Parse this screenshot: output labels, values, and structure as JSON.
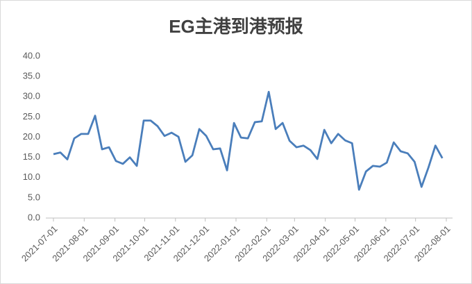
{
  "chart_data": {
    "type": "line",
    "title": "EG主港到港预报",
    "x": [
      0,
      7,
      14,
      21,
      28,
      35,
      42,
      49,
      56,
      63,
      70,
      77,
      84,
      91,
      98,
      105,
      112,
      119,
      126,
      133,
      140,
      147,
      154,
      161,
      168,
      175,
      182,
      189,
      196,
      203,
      210,
      217,
      224,
      231,
      238,
      245,
      252,
      259,
      266,
      273,
      280,
      287,
      294,
      301,
      308,
      315,
      322,
      329,
      336,
      343,
      350,
      357,
      364,
      371,
      378,
      385,
      392
    ],
    "series": [
      {
        "name": "EG主港到港预报",
        "color": "#4a7ebb",
        "values": [
          15.8,
          16.2,
          14.5,
          19.7,
          20.8,
          20.8,
          25.3,
          17.0,
          17.5,
          14.1,
          13.4,
          15.0,
          12.9,
          24.1,
          24.1,
          22.7,
          20.3,
          21.1,
          20.1,
          13.9,
          15.5,
          22.0,
          20.3,
          17.0,
          17.2,
          11.8,
          23.5,
          19.9,
          19.7,
          23.7,
          23.9,
          31.2,
          22.0,
          23.5,
          19.1,
          17.5,
          17.9,
          16.8,
          14.6,
          21.8,
          18.5,
          20.8,
          19.2,
          18.5,
          7.0,
          11.5,
          12.9,
          12.7,
          13.7,
          18.7,
          16.5,
          16.0,
          13.9,
          7.7,
          12.5,
          17.9,
          14.8
        ]
      }
    ],
    "xlim": [
      0,
      396
    ],
    "xticks": [
      {
        "value": 0,
        "label": "2021-07-01"
      },
      {
        "value": 31,
        "label": "2021-08-01"
      },
      {
        "value": 62,
        "label": "2021-09-01"
      },
      {
        "value": 92,
        "label": "2021-10-01"
      },
      {
        "value": 123,
        "label": "2021-11-01"
      },
      {
        "value": 153,
        "label": "2021-12-01"
      },
      {
        "value": 184,
        "label": "2022-01-01"
      },
      {
        "value": 215,
        "label": "2022-02-01"
      },
      {
        "value": 243,
        "label": "2022-03-01"
      },
      {
        "value": 274,
        "label": "2022-04-01"
      },
      {
        "value": 304,
        "label": "2022-05-01"
      },
      {
        "value": 335,
        "label": "2022-06-01"
      },
      {
        "value": 365,
        "label": "2022-07-01"
      },
      {
        "value": 396,
        "label": "2022-08-01"
      }
    ],
    "ylim": [
      0,
      40
    ],
    "yticks": [
      {
        "value": 0,
        "label": "0.0"
      },
      {
        "value": 5,
        "label": "5.0"
      },
      {
        "value": 10,
        "label": "10.0"
      },
      {
        "value": 15,
        "label": "15.0"
      },
      {
        "value": 20,
        "label": "20.0"
      },
      {
        "value": 25,
        "label": "25.0"
      },
      {
        "value": 30,
        "label": "30.0"
      },
      {
        "value": 35,
        "label": "35.0"
      },
      {
        "value": 40,
        "label": "40.0"
      }
    ],
    "grid": false
  }
}
